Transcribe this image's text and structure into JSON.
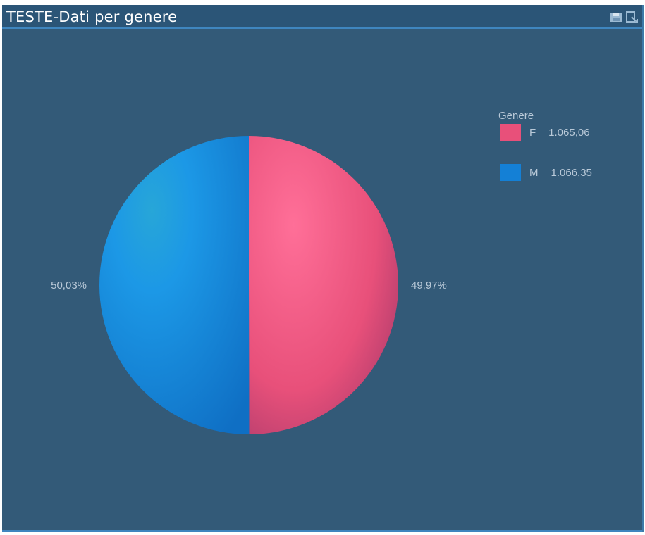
{
  "window": {
    "title": "TESTE-Dati per genere",
    "icons": [
      "save-icon",
      "export-icon"
    ]
  },
  "chart_data": {
    "type": "pie",
    "title": "TESTE-Dati per genere",
    "legend_title": "Genere",
    "legend_position": "top-right",
    "categories": [
      "F",
      "M"
    ],
    "values": [
      1065.06,
      1066.35
    ],
    "value_labels": [
      "1.065,06",
      "1.066,35"
    ],
    "percent_labels": [
      "49,97%",
      "50,03%"
    ],
    "colors": [
      "#e8507a",
      "#1480d6"
    ]
  },
  "colors": {
    "background": "#335a78",
    "titlebar": "#2b5577",
    "accent": "#3f86bf",
    "label_text": "#b9c9d8"
  }
}
